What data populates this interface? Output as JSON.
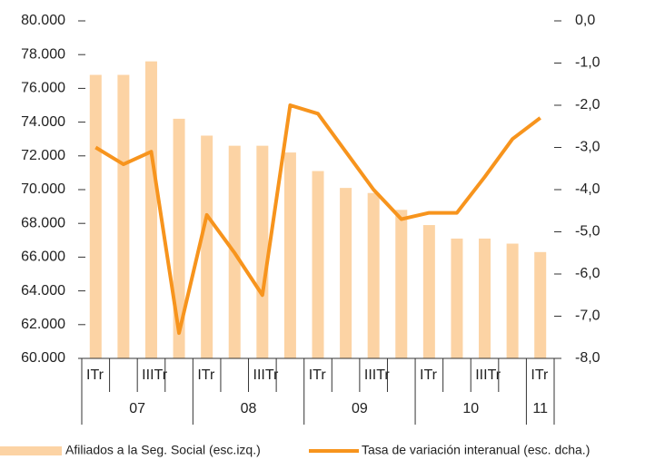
{
  "chart_data": {
    "type": "bar",
    "categories": [
      "ITr",
      null,
      "IIITr",
      null,
      "ITr",
      null,
      "IIITr",
      null,
      "ITr",
      null,
      "IIITr",
      null,
      "ITr",
      null,
      "IIITr",
      null,
      "ITr"
    ],
    "groups": [
      "07",
      "08",
      "09",
      "10",
      "11"
    ],
    "series": [
      {
        "name": "Afiliados a la Seg. Social (esc.izq.)",
        "type": "bar",
        "color": "#fcd3a4",
        "values": [
          76800,
          76800,
          77600,
          74200,
          73200,
          72600,
          72600,
          72200,
          71100,
          70100,
          69800,
          68800,
          67900,
          67100,
          67100,
          66800,
          66300
        ]
      },
      {
        "name": "Tasa de variación interanual (esc. dcha.)",
        "type": "line",
        "axis": "y2",
        "color": "#f7941d",
        "values": [
          -3.0,
          -3.4,
          -3.1,
          -7.4,
          -4.6,
          -5.5,
          -6.5,
          -2.0,
          -2.2,
          -3.1,
          -4.0,
          -4.7,
          -4.55,
          -4.55,
          -3.7,
          -2.8,
          -2.3
        ]
      }
    ],
    "ylim": [
      60000,
      80000
    ],
    "yticks": [
      {
        "value": 60000,
        "label": "60.000"
      },
      {
        "value": 62000,
        "label": "62.000"
      },
      {
        "value": 64000,
        "label": "64.000"
      },
      {
        "value": 66000,
        "label": "66.000"
      },
      {
        "value": 68000,
        "label": "68.000"
      },
      {
        "value": 70000,
        "label": "70.000"
      },
      {
        "value": 72000,
        "label": "72.000"
      },
      {
        "value": 74000,
        "label": "74.000"
      },
      {
        "value": 76000,
        "label": "76.000"
      },
      {
        "value": 78000,
        "label": "78.000"
      },
      {
        "value": 80000,
        "label": "80.000"
      }
    ],
    "y2lim": [
      -8,
      0
    ],
    "y2ticks": [
      {
        "value": 0,
        "label": "0,0"
      },
      {
        "value": -1,
        "label": "-1,0"
      },
      {
        "value": -2,
        "label": "-2,0"
      },
      {
        "value": -3,
        "label": "-3,0"
      },
      {
        "value": -4,
        "label": "-4,0"
      },
      {
        "value": -5,
        "label": "-5,0"
      },
      {
        "value": -6,
        "label": "-6,0"
      },
      {
        "value": -7,
        "label": "-7,0"
      },
      {
        "value": -8,
        "label": "-8,0"
      }
    ]
  }
}
